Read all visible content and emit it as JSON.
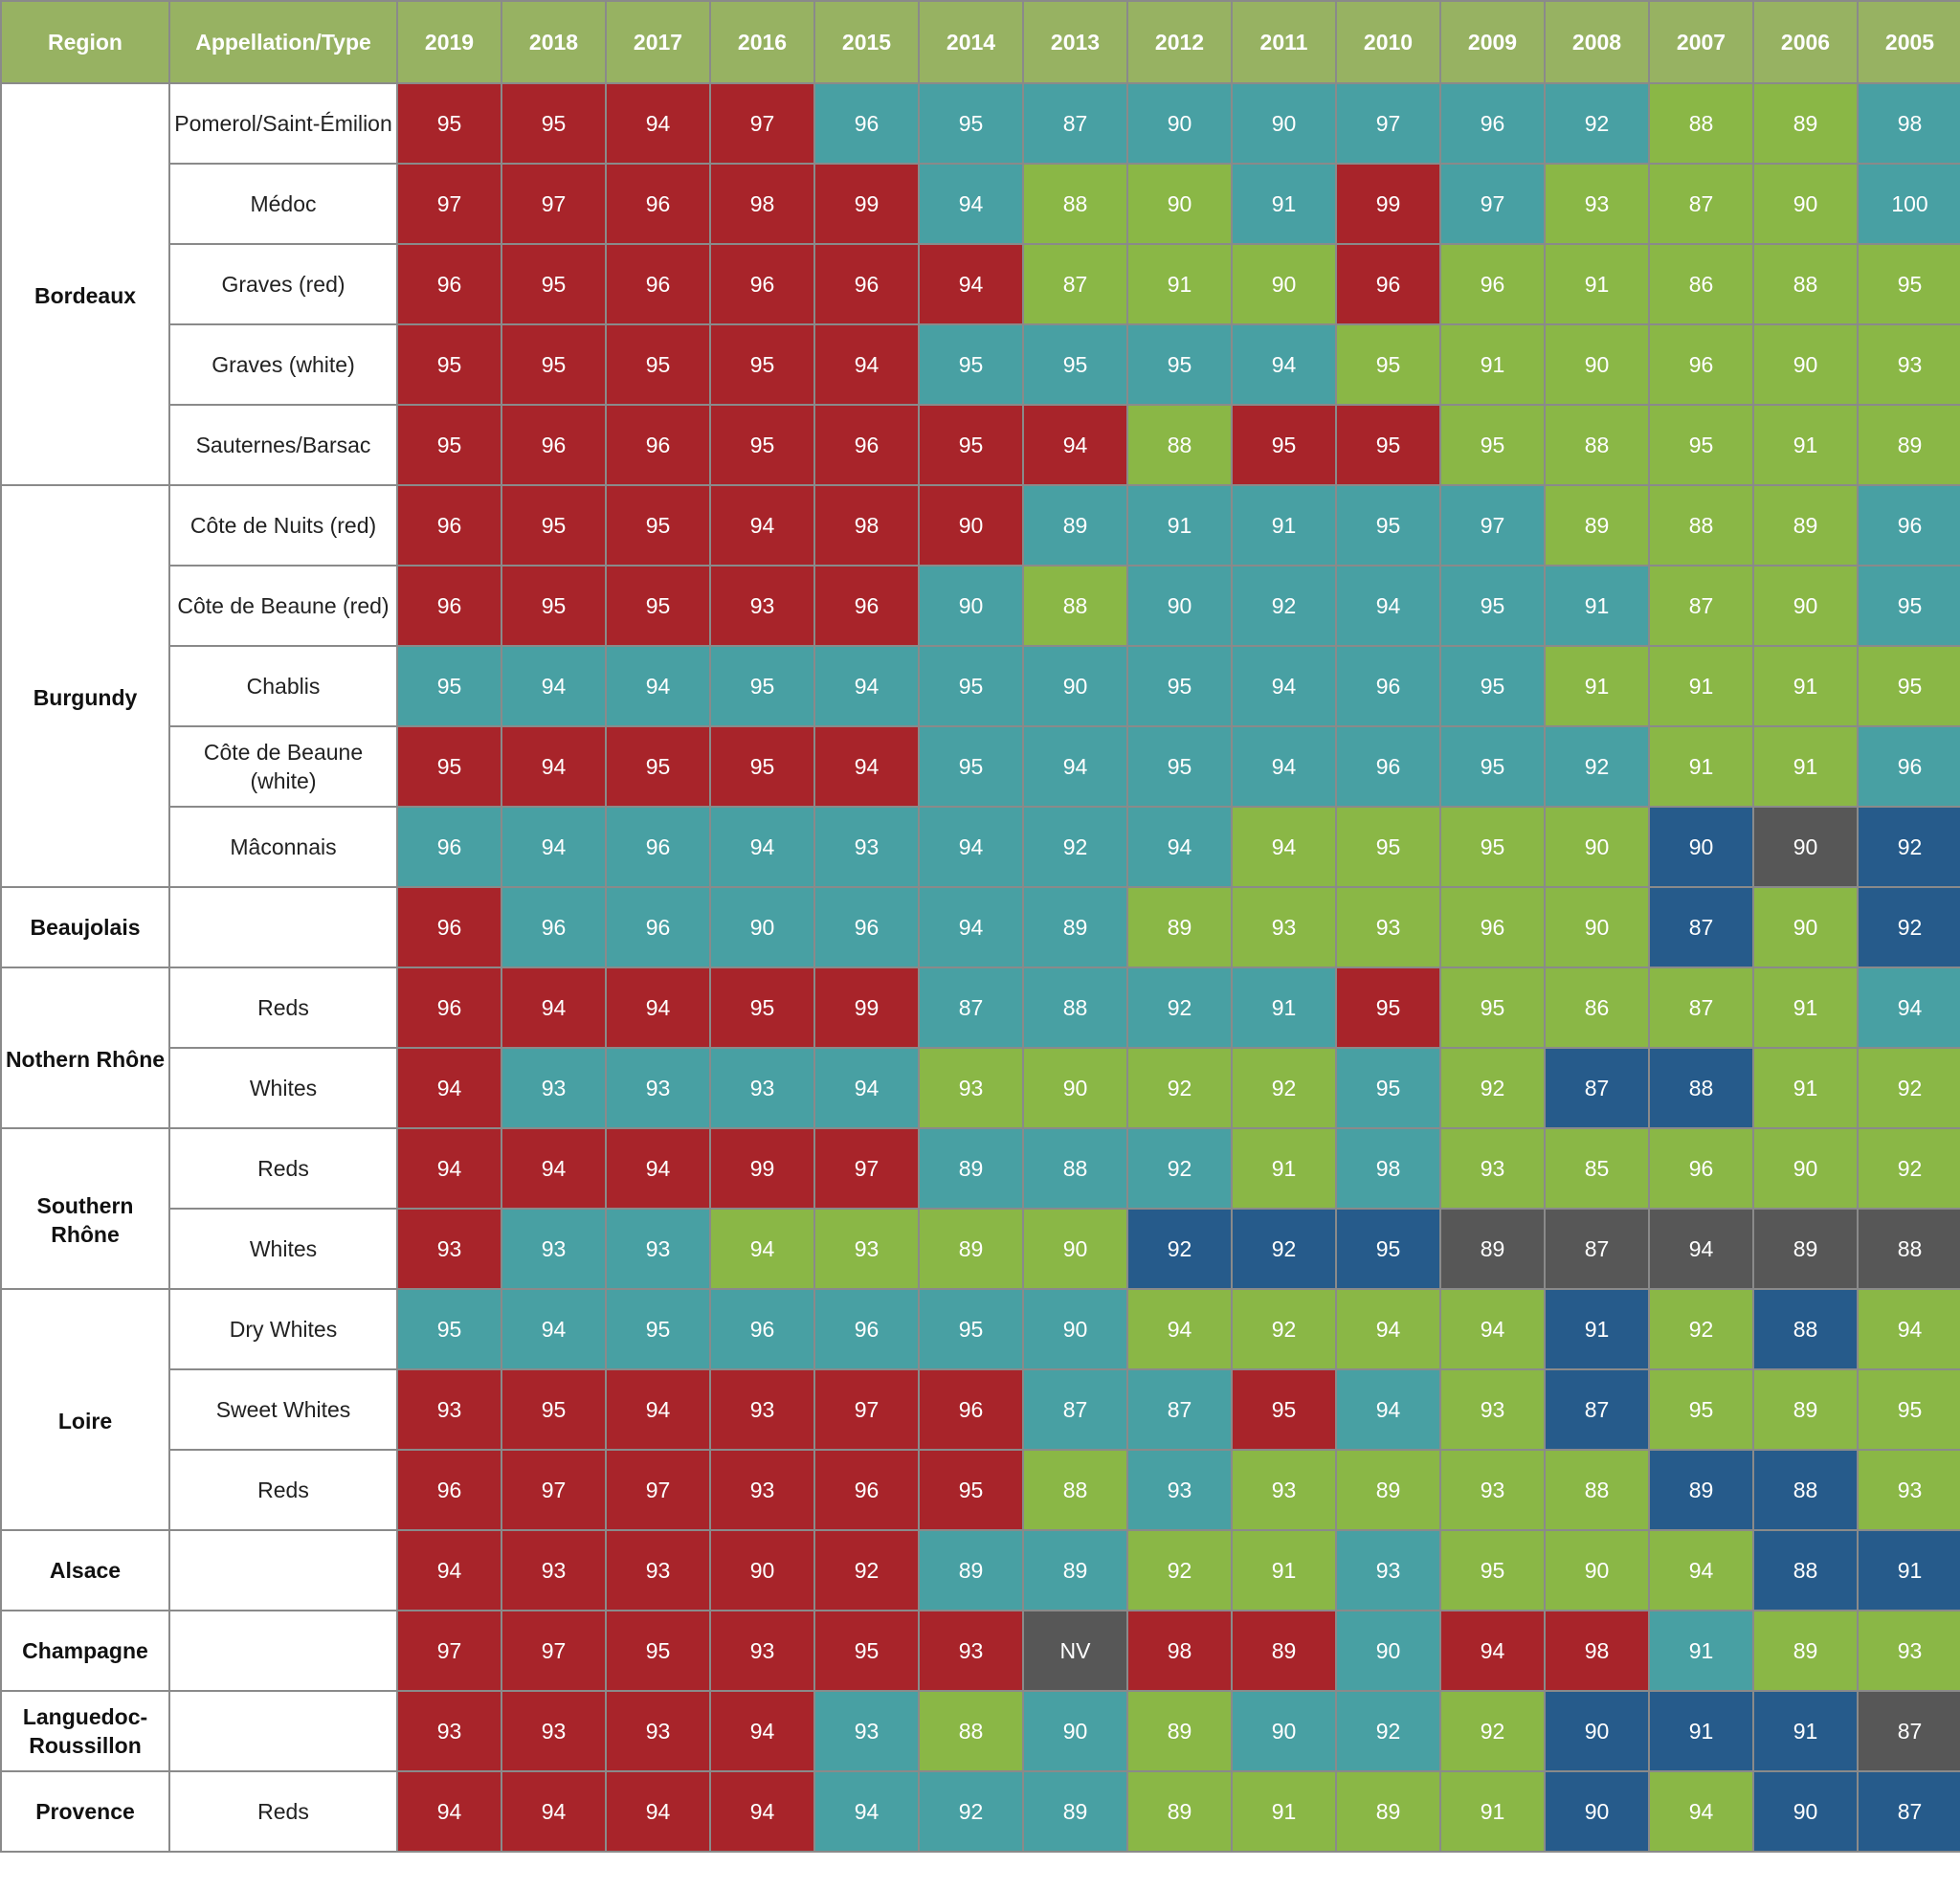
{
  "chart_data": {
    "type": "table",
    "header": {
      "region": "Region",
      "appellation": "Appellation/Type",
      "years": [
        "2019",
        "2018",
        "2017",
        "2016",
        "2015",
        "2014",
        "2013",
        "2012",
        "2011",
        "2010",
        "2009",
        "2008",
        "2007",
        "2006",
        "2005"
      ]
    },
    "colors": {
      "header_bg": "#97b262",
      "red": "#a8242a",
      "teal": "#48a0a3",
      "green": "#8ab746",
      "blue": "#265b8b",
      "gray": "#575757"
    },
    "regions": [
      {
        "name": "Bordeaux",
        "rows": [
          {
            "type": "Pomerol/Saint-Émilion",
            "scores": [
              "95",
              "95",
              "94",
              "97",
              "96",
              "95",
              "87",
              "90",
              "90",
              "97",
              "96",
              "92",
              "88",
              "89",
              "98"
            ],
            "colors": [
              "red",
              "red",
              "red",
              "red",
              "teal",
              "teal",
              "teal",
              "teal",
              "teal",
              "teal",
              "teal",
              "teal",
              "green",
              "green",
              "teal"
            ]
          },
          {
            "type": "Médoc",
            "scores": [
              "97",
              "97",
              "96",
              "98",
              "99",
              "94",
              "88",
              "90",
              "91",
              "99",
              "97",
              "93",
              "87",
              "90",
              "100"
            ],
            "colors": [
              "red",
              "red",
              "red",
              "red",
              "red",
              "teal",
              "green",
              "green",
              "teal",
              "red",
              "teal",
              "green",
              "green",
              "green",
              "teal"
            ]
          },
          {
            "type": "Graves (red)",
            "scores": [
              "96",
              "95",
              "96",
              "96",
              "96",
              "94",
              "87",
              "91",
              "90",
              "96",
              "96",
              "91",
              "86",
              "88",
              "95"
            ],
            "colors": [
              "red",
              "red",
              "red",
              "red",
              "red",
              "red",
              "green",
              "green",
              "green",
              "red",
              "green",
              "green",
              "green",
              "green",
              "green"
            ]
          },
          {
            "type": "Graves (white)",
            "scores": [
              "95",
              "95",
              "95",
              "95",
              "94",
              "95",
              "95",
              "95",
              "94",
              "95",
              "91",
              "90",
              "96",
              "90",
              "93"
            ],
            "colors": [
              "red",
              "red",
              "red",
              "red",
              "red",
              "teal",
              "teal",
              "teal",
              "teal",
              "green",
              "green",
              "green",
              "green",
              "green",
              "green"
            ]
          },
          {
            "type": "Sauternes/Barsac",
            "scores": [
              "95",
              "96",
              "96",
              "95",
              "96",
              "95",
              "94",
              "88",
              "95",
              "95",
              "95",
              "88",
              "95",
              "91",
              "89"
            ],
            "colors": [
              "red",
              "red",
              "red",
              "red",
              "red",
              "red",
              "red",
              "green",
              "red",
              "red",
              "green",
              "green",
              "green",
              "green",
              "green"
            ]
          }
        ]
      },
      {
        "name": "Burgundy",
        "rows": [
          {
            "type": "Côte de Nuits (red)",
            "scores": [
              "96",
              "95",
              "95",
              "94",
              "98",
              "90",
              "89",
              "91",
              "91",
              "95",
              "97",
              "89",
              "88",
              "89",
              "96"
            ],
            "colors": [
              "red",
              "red",
              "red",
              "red",
              "red",
              "red",
              "teal",
              "teal",
              "teal",
              "teal",
              "teal",
              "green",
              "green",
              "green",
              "teal"
            ]
          },
          {
            "type": "Côte de Beaune (red)",
            "scores": [
              "96",
              "95",
              "95",
              "93",
              "96",
              "90",
              "88",
              "90",
              "92",
              "94",
              "95",
              "91",
              "87",
              "90",
              "95"
            ],
            "colors": [
              "red",
              "red",
              "red",
              "red",
              "red",
              "teal",
              "green",
              "teal",
              "teal",
              "teal",
              "teal",
              "teal",
              "green",
              "green",
              "teal"
            ]
          },
          {
            "type": "Chablis",
            "scores": [
              "95",
              "94",
              "94",
              "95",
              "94",
              "95",
              "90",
              "95",
              "94",
              "96",
              "95",
              "91",
              "91",
              "91",
              "95"
            ],
            "colors": [
              "teal",
              "teal",
              "teal",
              "teal",
              "teal",
              "teal",
              "teal",
              "teal",
              "teal",
              "teal",
              "teal",
              "green",
              "green",
              "green",
              "green"
            ]
          },
          {
            "type": "Côte de Beaune (white)",
            "scores": [
              "95",
              "94",
              "95",
              "95",
              "94",
              "95",
              "94",
              "95",
              "94",
              "96",
              "95",
              "92",
              "91",
              "91",
              "96"
            ],
            "colors": [
              "red",
              "red",
              "red",
              "red",
              "red",
              "teal",
              "teal",
              "teal",
              "teal",
              "teal",
              "teal",
              "teal",
              "green",
              "green",
              "teal"
            ]
          },
          {
            "type": "Mâconnais",
            "scores": [
              "96",
              "94",
              "96",
              "94",
              "93",
              "94",
              "92",
              "94",
              "94",
              "95",
              "95",
              "90",
              "90",
              "90",
              "92"
            ],
            "colors": [
              "teal",
              "teal",
              "teal",
              "teal",
              "teal",
              "teal",
              "teal",
              "teal",
              "green",
              "green",
              "green",
              "green",
              "blue",
              "gray",
              "blue"
            ]
          }
        ]
      },
      {
        "name": "Beaujolais",
        "rows": [
          {
            "type": "",
            "scores": [
              "96",
              "96",
              "96",
              "90",
              "96",
              "94",
              "89",
              "89",
              "93",
              "93",
              "96",
              "90",
              "87",
              "90",
              "92"
            ],
            "colors": [
              "red",
              "teal",
              "teal",
              "teal",
              "teal",
              "teal",
              "teal",
              "green",
              "green",
              "green",
              "green",
              "green",
              "blue",
              "green",
              "blue"
            ]
          }
        ]
      },
      {
        "name": "Nothern Rhône",
        "rows": [
          {
            "type": "Reds",
            "scores": [
              "96",
              "94",
              "94",
              "95",
              "99",
              "87",
              "88",
              "92",
              "91",
              "95",
              "95",
              "86",
              "87",
              "91",
              "94"
            ],
            "colors": [
              "red",
              "red",
              "red",
              "red",
              "red",
              "teal",
              "teal",
              "teal",
              "teal",
              "red",
              "green",
              "green",
              "green",
              "green",
              "teal"
            ]
          },
          {
            "type": "Whites",
            "scores": [
              "94",
              "93",
              "93",
              "93",
              "94",
              "93",
              "90",
              "92",
              "92",
              "95",
              "92",
              "87",
              "88",
              "91",
              "92"
            ],
            "colors": [
              "red",
              "teal",
              "teal",
              "teal",
              "teal",
              "green",
              "green",
              "green",
              "green",
              "teal",
              "green",
              "blue",
              "blue",
              "green",
              "green"
            ]
          }
        ]
      },
      {
        "name": "Southern Rhône",
        "rows": [
          {
            "type": "Reds",
            "scores": [
              "94",
              "94",
              "94",
              "99",
              "97",
              "89",
              "88",
              "92",
              "91",
              "98",
              "93",
              "85",
              "96",
              "90",
              "92"
            ],
            "colors": [
              "red",
              "red",
              "red",
              "red",
              "red",
              "teal",
              "teal",
              "teal",
              "green",
              "teal",
              "green",
              "green",
              "green",
              "green",
              "green"
            ]
          },
          {
            "type": "Whites",
            "scores": [
              "93",
              "93",
              "93",
              "94",
              "93",
              "89",
              "90",
              "92",
              "92",
              "95",
              "89",
              "87",
              "94",
              "89",
              "88"
            ],
            "colors": [
              "red",
              "teal",
              "teal",
              "green",
              "green",
              "green",
              "green",
              "blue",
              "blue",
              "blue",
              "gray",
              "gray",
              "gray",
              "gray",
              "gray"
            ]
          }
        ]
      },
      {
        "name": "Loire",
        "rows": [
          {
            "type": "Dry Whites",
            "scores": [
              "95",
              "94",
              "95",
              "96",
              "96",
              "95",
              "90",
              "94",
              "92",
              "94",
              "94",
              "91",
              "92",
              "88",
              "94"
            ],
            "colors": [
              "teal",
              "teal",
              "teal",
              "teal",
              "teal",
              "teal",
              "teal",
              "green",
              "green",
              "green",
              "green",
              "blue",
              "green",
              "blue",
              "green"
            ]
          },
          {
            "type": "Sweet Whites",
            "scores": [
              "93",
              "95",
              "94",
              "93",
              "97",
              "96",
              "87",
              "87",
              "95",
              "94",
              "93",
              "87",
              "95",
              "89",
              "95"
            ],
            "colors": [
              "red",
              "red",
              "red",
              "red",
              "red",
              "red",
              "teal",
              "teal",
              "red",
              "teal",
              "green",
              "blue",
              "green",
              "green",
              "green"
            ]
          },
          {
            "type": "Reds",
            "scores": [
              "96",
              "97",
              "97",
              "93",
              "96",
              "95",
              "88",
              "93",
              "93",
              "89",
              "93",
              "88",
              "89",
              "88",
              "93"
            ],
            "colors": [
              "red",
              "red",
              "red",
              "red",
              "red",
              "red",
              "green",
              "teal",
              "green",
              "green",
              "green",
              "green",
              "blue",
              "blue",
              "green"
            ]
          }
        ]
      },
      {
        "name": "Alsace",
        "rows": [
          {
            "type": "",
            "scores": [
              "94",
              "93",
              "93",
              "90",
              "92",
              "89",
              "89",
              "92",
              "91",
              "93",
              "95",
              "90",
              "94",
              "88",
              "91"
            ],
            "colors": [
              "red",
              "red",
              "red",
              "red",
              "red",
              "teal",
              "teal",
              "green",
              "green",
              "teal",
              "green",
              "green",
              "green",
              "blue",
              "blue"
            ]
          }
        ]
      },
      {
        "name": "Champagne",
        "rows": [
          {
            "type": "",
            "scores": [
              "97",
              "97",
              "95",
              "93",
              "95",
              "93",
              "NV",
              "98",
              "89",
              "90",
              "94",
              "98",
              "91",
              "89",
              "93"
            ],
            "colors": [
              "red",
              "red",
              "red",
              "red",
              "red",
              "red",
              "gray",
              "red",
              "red",
              "teal",
              "red",
              "red",
              "teal",
              "green",
              "green"
            ]
          }
        ]
      },
      {
        "name": "Languedoc-Roussillon",
        "rows": [
          {
            "type": "",
            "scores": [
              "93",
              "93",
              "93",
              "94",
              "93",
              "88",
              "90",
              "89",
              "90",
              "92",
              "92",
              "90",
              "91",
              "91",
              "87"
            ],
            "colors": [
              "red",
              "red",
              "red",
              "red",
              "teal",
              "green",
              "teal",
              "green",
              "teal",
              "teal",
              "green",
              "blue",
              "blue",
              "blue",
              "gray"
            ]
          }
        ]
      },
      {
        "name": "Provence",
        "rows": [
          {
            "type": "Reds",
            "scores": [
              "94",
              "94",
              "94",
              "94",
              "94",
              "92",
              "89",
              "89",
              "91",
              "89",
              "91",
              "90",
              "94",
              "90",
              "87"
            ],
            "colors": [
              "red",
              "red",
              "red",
              "red",
              "teal",
              "teal",
              "teal",
              "green",
              "green",
              "green",
              "green",
              "blue",
              "green",
              "blue",
              "blue"
            ]
          }
        ]
      }
    ]
  }
}
